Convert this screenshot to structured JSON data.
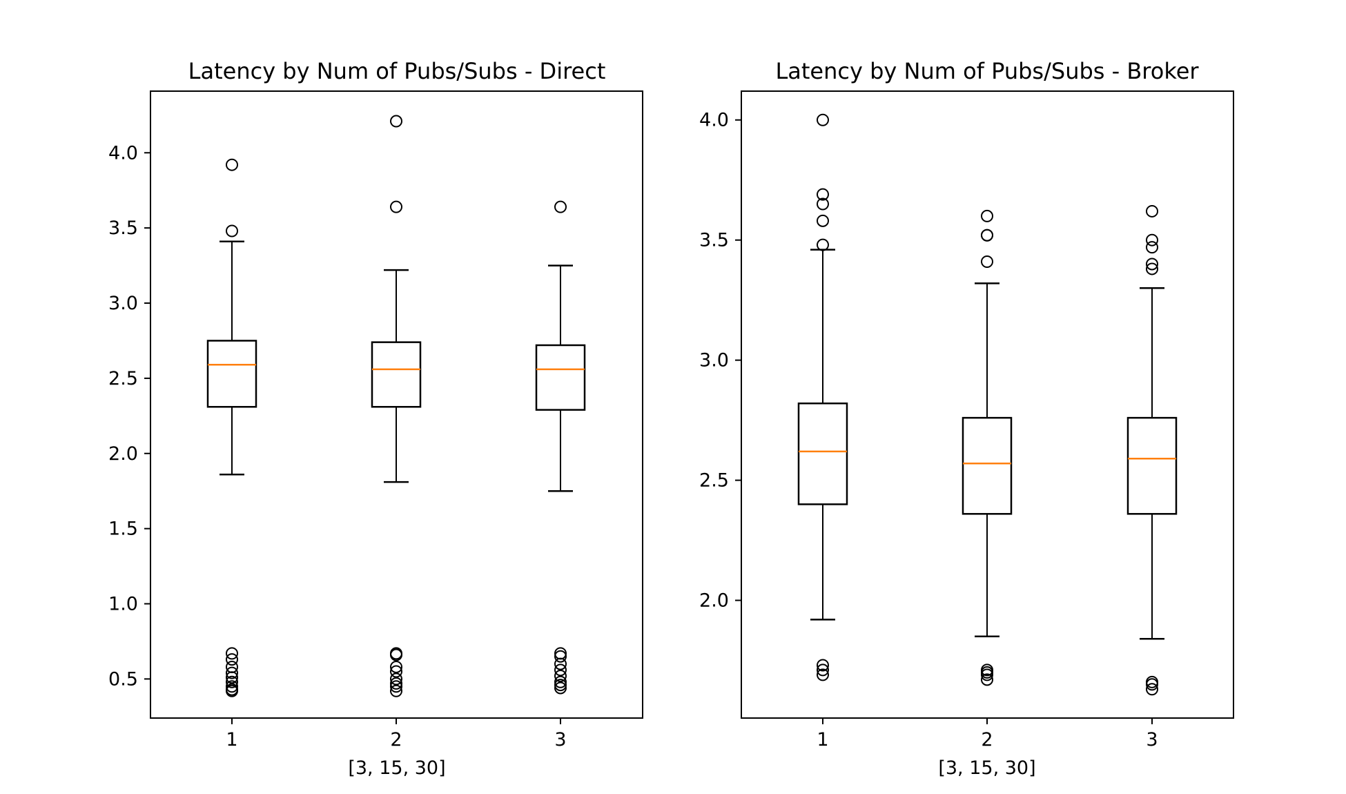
{
  "chart_data": [
    {
      "type": "box",
      "title": "Latency by Num of Pubs/Subs - Direct",
      "xlabel": "[3, 15, 30]",
      "ylabel": "",
      "categories": [
        "1",
        "2",
        "3"
      ],
      "ylim": [
        0.24,
        4.41
      ],
      "yticks": [
        0.5,
        1.0,
        1.5,
        2.0,
        2.5,
        3.0,
        3.5,
        4.0
      ],
      "ytick_labels": [
        "0.5",
        "1.0",
        "1.5",
        "2.0",
        "2.5",
        "3.0",
        "3.5",
        "4.0"
      ],
      "boxes": [
        {
          "category": "1",
          "whisker_low": 1.86,
          "q1": 2.31,
          "median": 2.59,
          "q3": 2.75,
          "whisker_high": 3.41,
          "outliers": [
            3.92,
            3.48,
            0.67,
            0.63,
            0.58,
            0.54,
            0.51,
            0.48,
            0.45,
            0.43,
            0.42
          ]
        },
        {
          "category": "2",
          "whisker_low": 1.81,
          "q1": 2.31,
          "median": 2.56,
          "q3": 2.74,
          "whisker_high": 3.22,
          "outliers": [
            4.21,
            3.64,
            0.67,
            0.66,
            0.58,
            0.55,
            0.5,
            0.47,
            0.45,
            0.42
          ]
        },
        {
          "category": "3",
          "whisker_low": 1.75,
          "q1": 2.29,
          "median": 2.56,
          "q3": 2.72,
          "whisker_high": 3.25,
          "outliers": [
            3.64,
            0.67,
            0.65,
            0.6,
            0.56,
            0.52,
            0.48,
            0.46,
            0.44
          ]
        }
      ],
      "box_color": "#000000",
      "median_color": "#ff7f0e",
      "grid": false
    },
    {
      "type": "box",
      "title": "Latency by Num of Pubs/Subs  - Broker",
      "xlabel": "[3, 15, 30]",
      "ylabel": "",
      "categories": [
        "1",
        "2",
        "3"
      ],
      "ylim": [
        1.51,
        4.12
      ],
      "yticks": [
        2.0,
        2.5,
        3.0,
        3.5,
        4.0
      ],
      "ytick_labels": [
        "2.0",
        "2.5",
        "3.0",
        "3.5",
        "4.0"
      ],
      "boxes": [
        {
          "category": "1",
          "whisker_low": 1.92,
          "q1": 2.4,
          "median": 2.62,
          "q3": 2.82,
          "whisker_high": 3.46,
          "outliers": [
            4.0,
            3.69,
            3.65,
            3.58,
            3.48,
            1.73,
            1.71,
            1.69
          ]
        },
        {
          "category": "2",
          "whisker_low": 1.85,
          "q1": 2.36,
          "median": 2.57,
          "q3": 2.76,
          "whisker_high": 3.32,
          "outliers": [
            3.6,
            3.52,
            3.52,
            3.41,
            1.71,
            1.7,
            1.69,
            1.67
          ]
        },
        {
          "category": "3",
          "whisker_low": 1.84,
          "q1": 2.36,
          "median": 2.59,
          "q3": 2.76,
          "whisker_high": 3.3,
          "outliers": [
            3.62,
            3.5,
            3.47,
            3.4,
            3.38,
            1.66,
            1.65,
            1.63
          ]
        }
      ],
      "box_color": "#000000",
      "median_color": "#ff7f0e",
      "grid": false
    }
  ]
}
